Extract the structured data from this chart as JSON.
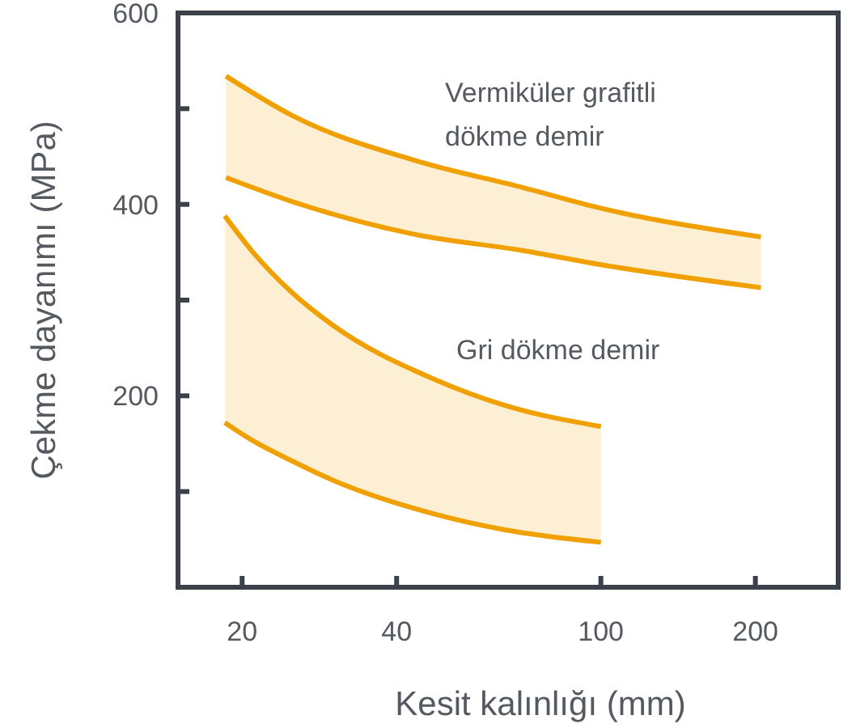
{
  "chart_data": {
    "type": "line",
    "xlabel": "Kesit kalınlığı (mm)",
    "ylabel": "Çekme dayanımı (MPa)",
    "log": "x",
    "xlim": [
      15,
      290
    ],
    "xticks": [
      20,
      40,
      100,
      200
    ],
    "ylim": [
      0,
      600
    ],
    "yticks": [
      {
        "value": 100,
        "label": null
      },
      200,
      {
        "value": 300,
        "label": null
      },
      400,
      {
        "value": 500,
        "label": null
      },
      600
    ],
    "grid": false,
    "legend": false,
    "series": [
      {
        "name": "Vermiküler grafitli dökme demir",
        "color": "#f0a000",
        "x": [
          18.6,
          25,
          44,
          70,
          100,
          205
        ],
        "values": [
          534,
          493,
          445,
          418,
          396,
          366
        ],
        "lower": [
          428,
          403,
          368,
          352,
          337,
          313
        ],
        "upper": [
          534,
          493,
          445,
          418,
          396,
          366
        ]
      },
      {
        "color": "#f0a000",
        "x": [
          18.6,
          25,
          44,
          70,
          100,
          205
        ],
        "values": [
          428,
          403,
          368,
          352,
          337,
          313
        ]
      },
      {
        "name": "Gri dökme demir",
        "color": "#f0a000",
        "x": [
          18.5,
          21,
          25,
          30,
          47,
          65,
          100
        ],
        "values": [
          388,
          350,
          308,
          274,
          218,
          190,
          168
        ],
        "lower": [
          172,
          153,
          132,
          112,
          77,
          60,
          47
        ],
        "upper": [
          388,
          350,
          308,
          274,
          218,
          190,
          168
        ]
      },
      {
        "color": "#f0a000",
        "x": [
          18.5,
          21,
          25,
          30,
          47,
          65,
          100
        ],
        "values": [
          172,
          153,
          132,
          112,
          77,
          60,
          47
        ]
      }
    ]
  }
}
